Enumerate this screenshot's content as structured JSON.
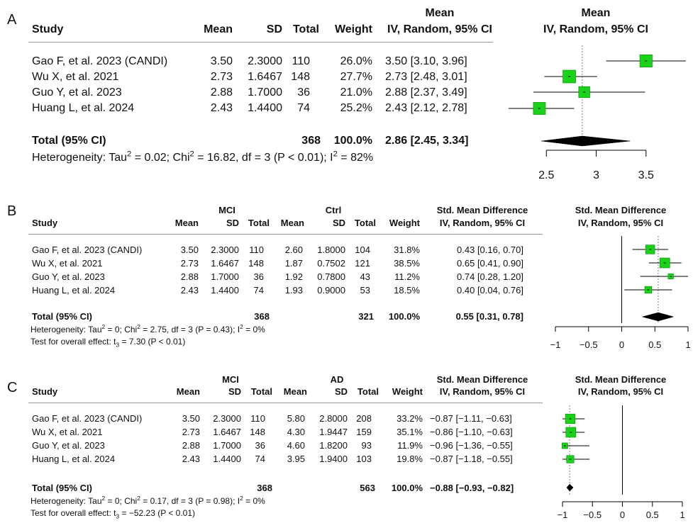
{
  "chart_data": [
    {
      "type": "forest",
      "panel_label": "A",
      "columns": {
        "study": "Study",
        "mean": "Mean",
        "sd": "SD",
        "total": "Total",
        "weight": "Weight",
        "effect_top": "Mean",
        "effect_bottom": "IV, Random, 95% CI",
        "plot_top": "Mean",
        "plot_bottom": "IV, Random, 95% CI"
      },
      "studies": [
        {
          "study": "Gao F, et al. 2023 (CANDI)",
          "mean": "3.50",
          "sd": "2.3000",
          "total": "110",
          "weight": "26.0%",
          "ci_text": "3.50 [3.10, 3.96]",
          "est": 3.5,
          "lo": 3.1,
          "hi": 3.96
        },
        {
          "study": "Wu X, et al. 2021",
          "mean": "2.73",
          "sd": "1.6467",
          "total": "148",
          "weight": "27.7%",
          "ci_text": "2.73 [2.48, 3.01]",
          "est": 2.73,
          "lo": 2.48,
          "hi": 3.01
        },
        {
          "study": "Guo Y, et al. 2023",
          "mean": "2.88",
          "sd": "1.7000",
          "total": "36",
          "weight": "21.0%",
          "ci_text": "2.88 [2.37, 3.49]",
          "est": 2.88,
          "lo": 2.37,
          "hi": 3.49
        },
        {
          "study": "Huang L, et al. 2024",
          "mean": "2.43",
          "sd": "1.4400",
          "total": "74",
          "weight": "25.2%",
          "ci_text": "2.43 [2.12, 2.78]",
          "est": 2.43,
          "lo": 2.12,
          "hi": 2.78
        }
      ],
      "total": {
        "label": "Total (95% CI)",
        "total": "368",
        "weight": "100.0%",
        "ci_text": "2.86 [2.45, 3.34]",
        "est": 2.86,
        "lo": 2.45,
        "hi": 3.34
      },
      "heterogeneity": {
        "prefix": "Heterogeneity: Tau",
        "sup1": "2",
        "mid1": " = 0.02; Chi",
        "sup2": "2",
        "mid2": " = 16.82, df = 3 (P < 0.01); I",
        "sup3": "2",
        "suffix": " = 82%"
      },
      "xlim": [
        2.0,
        3.9
      ],
      "ticks": [
        2.5,
        3,
        3.5
      ],
      "tick_labels": [
        "2.5",
        "3",
        "3.5"
      ],
      "null_line": null
    },
    {
      "type": "forest",
      "panel_label": "B",
      "columns": {
        "study": "Study",
        "group1": "MCI",
        "mean1": "Mean",
        "sd1": "SD",
        "total1": "Total",
        "group2": "Ctrl",
        "mean2": "Mean",
        "sd2": "SD",
        "total2": "Total",
        "weight": "Weight",
        "effect_top": "Std. Mean Difference",
        "effect_bottom": "IV, Random, 95% CI",
        "plot_top": "Std. Mean Difference",
        "plot_bottom": "IV, Random, 95% CI"
      },
      "studies": [
        {
          "study": "Gao F, et al. 2023 (CANDI)",
          "mean1": "3.50",
          "sd1": "2.3000",
          "total1": "110",
          "mean2": "2.60",
          "sd2": "1.8000",
          "total2": "104",
          "weight": "31.8%",
          "ci_text": "0.43 [0.16, 0.70]",
          "est": 0.43,
          "lo": 0.16,
          "hi": 0.7
        },
        {
          "study": "Wu X, et al. 2021",
          "mean1": "2.73",
          "sd1": "1.6467",
          "total1": "148",
          "mean2": "1.87",
          "sd2": "0.7502",
          "total2": "121",
          "weight": "38.5%",
          "ci_text": "0.65 [0.41, 0.90]",
          "est": 0.65,
          "lo": 0.41,
          "hi": 0.9
        },
        {
          "study": "Guo Y, et al. 2023",
          "mean1": "2.88",
          "sd1": "1.7000",
          "total1": "36",
          "mean2": "1.92",
          "sd2": "0.7800",
          "total2": "43",
          "weight": "11.2%",
          "ci_text": "0.74 [0.28, 1.20]",
          "est": 0.74,
          "lo": 0.28,
          "hi": 1.2
        },
        {
          "study": "Huang L, et al. 2024",
          "mean1": "2.43",
          "sd1": "1.4400",
          "total1": "74",
          "mean2": "1.93",
          "sd2": "0.9000",
          "total2": "53",
          "weight": "18.5%",
          "ci_text": "0.40 [0.04, 0.76]",
          "est": 0.4,
          "lo": 0.04,
          "hi": 0.76
        }
      ],
      "total": {
        "label": "Total (95% CI)",
        "total1": "368",
        "total2": "321",
        "weight": "100.0%",
        "ci_text": "0.55 [0.31, 0.78]",
        "est": 0.55,
        "lo": 0.31,
        "hi": 0.78
      },
      "heterogeneity": {
        "prefix": "Heterogeneity: Tau",
        "sup1": "2",
        "mid1": " = 0; Chi",
        "sup2": "2",
        "mid2": " = 2.75, df = 3 (P = 0.43); I",
        "sup3": "2",
        "suffix": " = 0%"
      },
      "overall_effect": {
        "prefix": "Test for overall effect: t",
        "sub": "3",
        "suffix": " = 7.30 (P < 0.01)"
      },
      "xlim": [
        -1,
        1
      ],
      "ticks": [
        -1,
        -0.5,
        0,
        0.5,
        1
      ],
      "tick_labels": [
        "−1",
        "−0.5",
        "0",
        "0.5",
        "1"
      ],
      "null_line": 0
    },
    {
      "type": "forest",
      "panel_label": "C",
      "columns": {
        "study": "Study",
        "group1": "MCI",
        "mean1": "Mean",
        "sd1": "SD",
        "total1": "Total",
        "group2": "AD",
        "mean2": "Mean",
        "sd2": "SD",
        "total2": "Total",
        "weight": "Weight",
        "effect_top": "Std. Mean Difference",
        "effect_bottom": "IV, Random, 95% CI",
        "plot_top": "Std. Mean Difference",
        "plot_bottom": "IV, Random, 95% CI"
      },
      "studies": [
        {
          "study": "Gao F, et al. 2023 (CANDI)",
          "mean1": "3.50",
          "sd1": "2.3000",
          "total1": "110",
          "mean2": "5.80",
          "sd2": "2.8000",
          "total2": "208",
          "weight": "33.2%",
          "ci_text": "−0.87 [−1.11, −0.63]",
          "est": -0.87,
          "lo": -1.11,
          "hi": -0.63
        },
        {
          "study": "Wu X, et al. 2021",
          "mean1": "2.73",
          "sd1": "1.6467",
          "total1": "148",
          "mean2": "4.30",
          "sd2": "1.9447",
          "total2": "159",
          "weight": "35.1%",
          "ci_text": "−0.86 [−1.10, −0.63]",
          "est": -0.86,
          "lo": -1.1,
          "hi": -0.63
        },
        {
          "study": "Guo Y, et al. 2023",
          "mean1": "2.88",
          "sd1": "1.7000",
          "total1": "36",
          "mean2": "4.60",
          "sd2": "1.8200",
          "total2": "93",
          "weight": "11.9%",
          "ci_text": "−0.96 [−1.36, −0.55]",
          "est": -0.96,
          "lo": -1.36,
          "hi": -0.55
        },
        {
          "study": "Huang L, et al. 2024",
          "mean1": "2.43",
          "sd1": "1.4400",
          "total1": "74",
          "mean2": "3.95",
          "sd2": "1.9400",
          "total2": "103",
          "weight": "19.8%",
          "ci_text": "−0.87 [−1.18, −0.55]",
          "est": -0.87,
          "lo": -1.18,
          "hi": -0.55
        }
      ],
      "total": {
        "label": "Total (95% CI)",
        "total1": "368",
        "total2": "563",
        "weight": "100.0%",
        "ci_text": "−0.88 [−0.93, −0.82]",
        "est": -0.88,
        "lo": -0.93,
        "hi": -0.82
      },
      "heterogeneity": {
        "prefix": "Heterogeneity: Tau",
        "sup1": "2",
        "mid1": " = 0; Chi",
        "sup2": "2",
        "mid2": " = 0.17, df = 3 (P = 0.98); I",
        "sup3": "2",
        "suffix": " = 0%"
      },
      "overall_effect": {
        "prefix": "Test for overall effect: t",
        "sub": "3",
        "suffix": " = −52.23 (P < 0.01)"
      },
      "xlim": [
        -1,
        1
      ],
      "ticks": [
        -1,
        -0.5,
        0,
        0.5,
        1
      ],
      "tick_labels": [
        "−1",
        "−0.5",
        "0",
        "0.5",
        "1"
      ],
      "null_line": 0
    }
  ],
  "colors": {
    "square": "#19d219",
    "square_border": "#0a8a0a",
    "line": "#000000",
    "dotted": "#808080"
  }
}
